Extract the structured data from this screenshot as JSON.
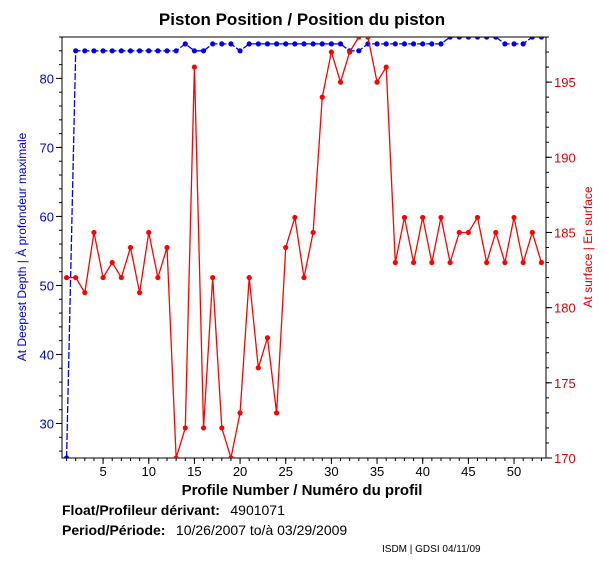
{
  "chart_data": {
    "type": "line",
    "title": "Piston Position / Position du piston",
    "xlabel": "Profile Number / Numéro du profil",
    "ylabel_left": "At Deepest Depth | À profondeur maximale",
    "ylabel_right": "At surface | En surface",
    "xlim": [
      0.5,
      53.5
    ],
    "ylim_left": [
      25,
      86
    ],
    "ylim_right": [
      170,
      198
    ],
    "x_ticks": [
      5,
      10,
      15,
      20,
      25,
      30,
      35,
      40,
      45,
      50
    ],
    "y_ticks_left": [
      30,
      40,
      50,
      60,
      70,
      80
    ],
    "y_ticks_right": [
      170,
      175,
      180,
      185,
      190,
      195
    ],
    "grid": false,
    "legend": "none",
    "x": [
      1,
      2,
      3,
      4,
      5,
      6,
      7,
      8,
      9,
      10,
      11,
      12,
      13,
      14,
      15,
      16,
      17,
      18,
      19,
      20,
      21,
      22,
      23,
      24,
      25,
      26,
      27,
      28,
      29,
      30,
      31,
      32,
      33,
      34,
      35,
      36,
      37,
      38,
      39,
      40,
      41,
      42,
      43,
      44,
      45,
      46,
      47,
      48,
      49,
      50,
      51,
      52,
      53
    ],
    "series": [
      {
        "axis": "left",
        "color": "#0000ee",
        "values": [
          25,
          84,
          84,
          84,
          84,
          84,
          84,
          84,
          84,
          84,
          84,
          84,
          84,
          85,
          84,
          84,
          85,
          85,
          85,
          84,
          85,
          85,
          85,
          85,
          85,
          85,
          85,
          85,
          85,
          85,
          85,
          84,
          84,
          85,
          85,
          85,
          85,
          85,
          85,
          85,
          85,
          85,
          86,
          86,
          86,
          86,
          86,
          86,
          85,
          85,
          85,
          86,
          86
        ]
      },
      {
        "axis": "right",
        "color": "#ff0000",
        "values": [
          182,
          182,
          181,
          185,
          182,
          183,
          182,
          184,
          181,
          185,
          182,
          184,
          170,
          172,
          196,
          172,
          182,
          172,
          170,
          173,
          182,
          176,
          178,
          173,
          184,
          186,
          182,
          185,
          194,
          197,
          195,
          197,
          198,
          198,
          195,
          196,
          183,
          186,
          183,
          186,
          183,
          186,
          183,
          185,
          185,
          186,
          183,
          185,
          183,
          186,
          183,
          185,
          183
        ]
      }
    ]
  },
  "info": {
    "float_label": "Float/Profileur dérivant:",
    "float_value": "4901071",
    "period_label": "Period/Période:",
    "period_value": "10/26/2007  to/à  03/29/2009"
  },
  "credit": "ISDM | GDSI 04/11/09",
  "colors": {
    "left_axis": "#0000cc",
    "right_axis": "#dd0000",
    "blue_series": "#0000ee",
    "red_series": "#ff0000"
  }
}
